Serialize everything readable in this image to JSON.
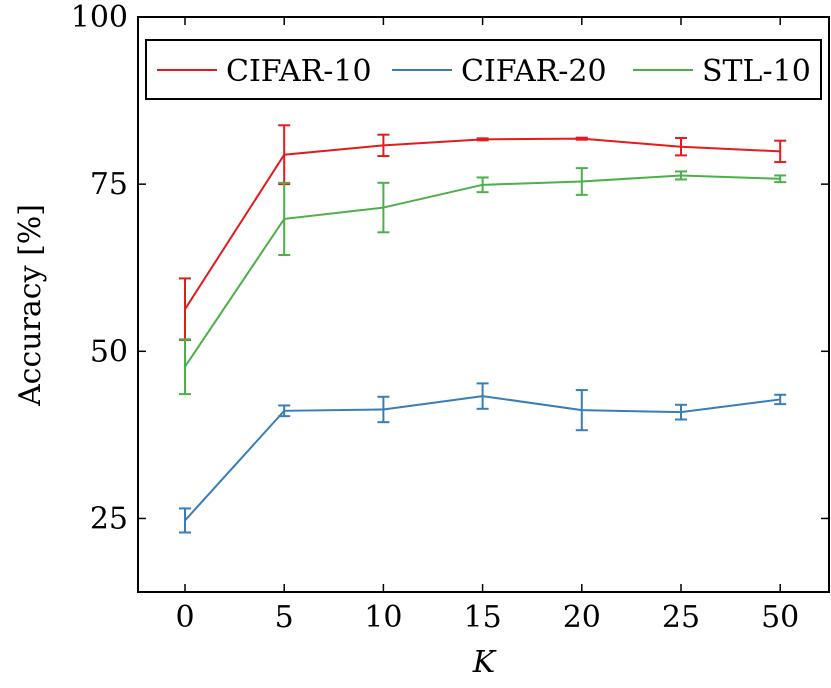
{
  "chart_data": {
    "type": "line",
    "title": "",
    "xlabel": "K",
    "ylabel": "Accuracy [%]",
    "categories": [
      "0",
      "5",
      "10",
      "15",
      "20",
      "25",
      "50"
    ],
    "ylim": [
      14,
      100
    ],
    "yticks": [
      25,
      50,
      75,
      100
    ],
    "grid": false,
    "legend_position": "top",
    "series": [
      {
        "name": "CIFAR-10",
        "color": "#e41a1c",
        "values": [
          56.3,
          79.4,
          80.8,
          81.7,
          81.8,
          80.6,
          79.9
        ],
        "error": [
          4.6,
          4.4,
          1.6,
          0.15,
          0.15,
          1.3,
          1.6
        ]
      },
      {
        "name": "CIFAR-20",
        "color": "#377eb8",
        "values": [
          24.7,
          41.1,
          41.3,
          43.3,
          41.2,
          40.9,
          42.8
        ],
        "error": [
          1.8,
          0.8,
          1.9,
          1.9,
          3.0,
          1.1,
          0.7
        ]
      },
      {
        "name": "STL-10",
        "color": "#4daf4a",
        "values": [
          47.7,
          69.8,
          71.5,
          74.9,
          75.4,
          76.3,
          75.8
        ],
        "error": [
          4.1,
          5.4,
          3.7,
          1.1,
          2.0,
          0.6,
          0.5
        ]
      }
    ]
  }
}
